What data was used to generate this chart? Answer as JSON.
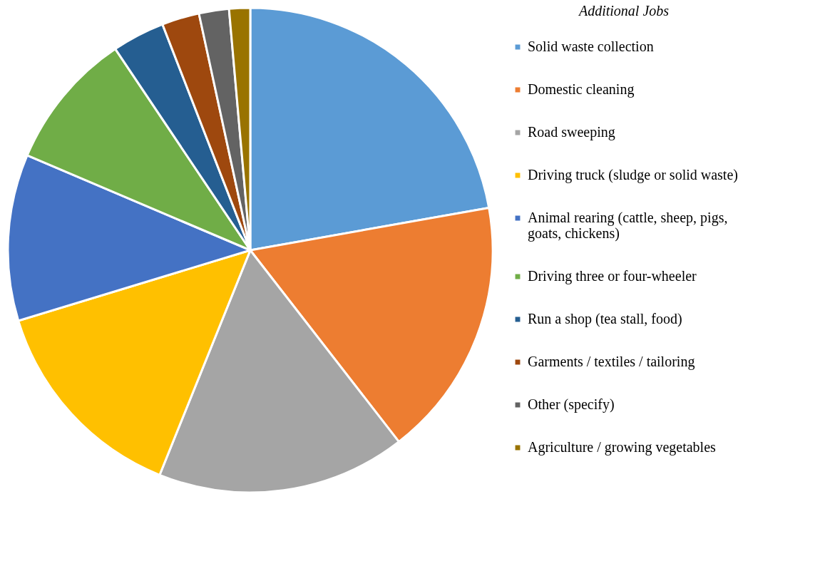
{
  "chart_data": {
    "type": "pie",
    "legend_title": "Additional Jobs",
    "legend": "right",
    "categories": [
      "Solid waste collection",
      "Domestic cleaning",
      "Road sweeping",
      "Driving truck (sludge or solid waste)",
      "Animal rearing (cattle, sheep, pigs, goats, chickens)",
      "Driving three or four-wheeler",
      "Run a shop (tea stall, food)",
      "Garments / textiles / tailoring",
      "Other (specify)",
      "Agriculture / growing vegetables"
    ],
    "values": [
      22.2,
      17.3,
      16.6,
      14.2,
      11.1,
      9.2,
      3.5,
      2.5,
      2.0,
      1.4
    ],
    "colors": [
      "#5b9bd5",
      "#ed7d31",
      "#a5a5a5",
      "#ffc000",
      "#4472c4",
      "#70ad47",
      "#255e91",
      "#9e480e",
      "#636363",
      "#997300"
    ]
  }
}
